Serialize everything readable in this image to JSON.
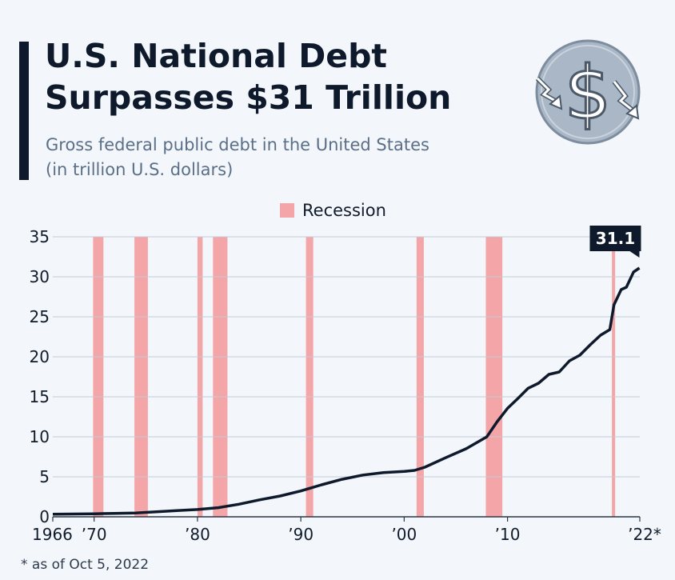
{
  "header": {
    "title_line1": "U.S. National Debt",
    "title_line2": "Surpasses $31 Trillion",
    "subtitle_line1": "Gross federal public debt in the United States",
    "subtitle_line2": "(in trillion U.S. dollars)"
  },
  "logo": {
    "icon": "dollar-down-arrows-icon",
    "color": "#aab7c6"
  },
  "legend": {
    "label": "Recession",
    "color": "#f4a5a8"
  },
  "footnote": "* as of Oct 5, 2022",
  "chart_data": {
    "type": "line",
    "title": "",
    "xlabel": "",
    "ylabel": "",
    "xlim": [
      1966,
      2022.8
    ],
    "ylim": [
      0,
      35
    ],
    "y_ticks": [
      0,
      5,
      10,
      15,
      20,
      25,
      30,
      35
    ],
    "x_ticks": [
      {
        "value": 1966,
        "label": "1966"
      },
      {
        "value": 1970,
        "label": "’70"
      },
      {
        "value": 1980,
        "label": "’80"
      },
      {
        "value": 1990,
        "label": "’90"
      },
      {
        "value": 2000,
        "label": "’00"
      },
      {
        "value": 2010,
        "label": "’10"
      },
      {
        "value": 2022.8,
        "label": "’22*"
      }
    ],
    "grid": true,
    "line_color": "#0e1a2b",
    "recession_color": "#f4a5a8",
    "recessions": [
      [
        1969.9,
        1970.9
      ],
      [
        1973.9,
        1975.2
      ],
      [
        1980.0,
        1980.5
      ],
      [
        1981.5,
        1982.9
      ],
      [
        1990.5,
        1991.2
      ],
      [
        2001.2,
        2001.9
      ],
      [
        2007.9,
        2009.5
      ],
      [
        2020.1,
        2020.4
      ]
    ],
    "series": [
      {
        "x": [
          1966,
          1968,
          1970,
          1972,
          1974,
          1976,
          1978,
          1980,
          1982,
          1984,
          1986,
          1988,
          1990,
          1992,
          1994,
          1996,
          1998,
          2000,
          2001,
          2002,
          2004,
          2006,
          2008,
          2009,
          2010,
          2011,
          2012,
          2013,
          2014,
          2015,
          2016,
          2017,
          2018,
          2019,
          2019.9,
          2020.3,
          2021,
          2021.5,
          2022.2,
          2022.76
        ],
        "y": [
          0.32,
          0.35,
          0.38,
          0.43,
          0.48,
          0.62,
          0.77,
          0.91,
          1.14,
          1.57,
          2.12,
          2.6,
          3.23,
          4.0,
          4.69,
          5.22,
          5.53,
          5.67,
          5.8,
          6.2,
          7.38,
          8.51,
          10.0,
          11.9,
          13.56,
          14.79,
          16.07,
          16.7,
          17.8,
          18.1,
          19.5,
          20.2,
          21.5,
          22.7,
          23.4,
          26.5,
          28.4,
          28.7,
          30.6,
          31.1
        ]
      }
    ],
    "annotation": {
      "label": "31.1",
      "x": 2022.76,
      "y": 31.1
    }
  }
}
